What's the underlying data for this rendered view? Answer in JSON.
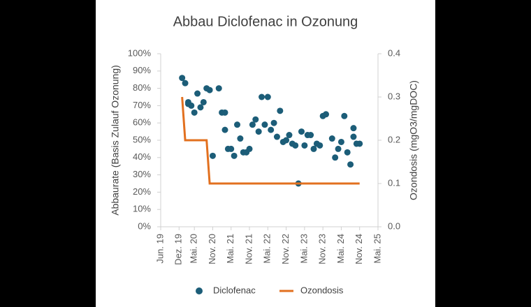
{
  "chart_data": {
    "type": "scatter-line",
    "title": "Abbau Diclofenac in Ozonung",
    "y_label": "Abbaurate (Basis Zulauf Ozonung)",
    "y2_label": "Ozondosis (mgO3/mgDOC)",
    "xlim": [
      "2019-06",
      "2025-05"
    ],
    "xticks": [
      {
        "value": "2019-06",
        "label": "Jun. 19"
      },
      {
        "value": "2019-12",
        "label": "Dez. 19"
      },
      {
        "value": "2020-05",
        "label": "Mai. 20"
      },
      {
        "value": "2020-11",
        "label": "Nov. 20"
      },
      {
        "value": "2021-05",
        "label": "Mai. 21"
      },
      {
        "value": "2021-11",
        "label": "Nov. 21"
      },
      {
        "value": "2022-05",
        "label": "Mai. 22"
      },
      {
        "value": "2022-11",
        "label": "Nov. 22"
      },
      {
        "value": "2023-05",
        "label": "Mai. 23"
      },
      {
        "value": "2023-11",
        "label": "Nov. 23"
      },
      {
        "value": "2024-05",
        "label": "Mai. 24"
      },
      {
        "value": "2024-11",
        "label": "Nov. 24"
      },
      {
        "value": "2025-05",
        "label": "Mai. 25"
      }
    ],
    "ylim": [
      0,
      100
    ],
    "yticks": [
      {
        "value": 0,
        "label": "0%"
      },
      {
        "value": 10,
        "label": "10%"
      },
      {
        "value": 20,
        "label": "20%"
      },
      {
        "value": 30,
        "label": "30%"
      },
      {
        "value": 40,
        "label": "40%"
      },
      {
        "value": 50,
        "label": "50%"
      },
      {
        "value": 60,
        "label": "60%"
      },
      {
        "value": 70,
        "label": "70%"
      },
      {
        "value": 80,
        "label": "80%"
      },
      {
        "value": 90,
        "label": "90%"
      },
      {
        "value": 100,
        "label": "100%"
      }
    ],
    "y2lim": [
      0,
      0.4
    ],
    "y2ticks": [
      {
        "value": 0,
        "label": "0.0"
      },
      0.1,
      0.2,
      0.3,
      0.4
    ],
    "series": [
      {
        "name": "Diclofenac",
        "color": "#1c5d78",
        "kind": "scatter",
        "x": [
          "2020-01",
          "2020-02",
          "2020-03",
          "2020-03",
          "2020-04",
          "2020-05",
          "2020-06",
          "2020-07",
          "2020-08",
          "2020-09",
          "2020-10",
          "2020-11",
          "2021-01",
          "2021-02",
          "2021-03",
          "2021-03",
          "2021-04",
          "2021-05",
          "2021-06",
          "2021-07",
          "2021-08",
          "2021-09",
          "2021-10",
          "2021-11",
          "2021-12",
          "2022-01",
          "2022-02",
          "2022-03",
          "2022-04",
          "2022-05",
          "2022-06",
          "2022-07",
          "2022-08",
          "2022-09",
          "2022-10",
          "2022-11",
          "2022-12",
          "2023-01",
          "2023-02",
          "2023-03",
          "2023-04",
          "2023-05",
          "2023-06",
          "2023-07",
          "2023-08",
          "2023-09",
          "2023-10",
          "2023-11",
          "2023-12",
          "2024-02",
          "2024-03",
          "2024-04",
          "2024-05",
          "2024-06",
          "2024-07",
          "2024-08",
          "2024-09",
          "2024-09",
          "2024-10",
          "2024-11"
        ],
        "values": [
          86,
          83,
          71,
          72,
          70,
          66,
          77,
          69,
          72,
          80,
          79,
          41,
          80,
          66,
          66,
          56,
          45,
          45,
          41,
          59,
          51,
          43,
          43,
          45,
          59,
          62,
          55,
          75,
          59,
          75,
          56,
          60,
          52,
          67,
          49,
          50,
          53,
          48,
          47,
          25,
          55,
          47,
          53,
          53,
          45,
          48,
          47,
          64,
          65,
          51,
          40,
          45,
          49,
          64,
          43,
          36,
          52,
          57,
          48,
          48
        ]
      },
      {
        "name": "Ozondosis",
        "color": "#e2701f",
        "kind": "line",
        "axis": "y2",
        "x": [
          "2020-01",
          "2020-02",
          "2020-09",
          "2020-10",
          "2024-11"
        ],
        "values": [
          0.3,
          0.2,
          0.2,
          0.1,
          0.1
        ]
      }
    ]
  }
}
